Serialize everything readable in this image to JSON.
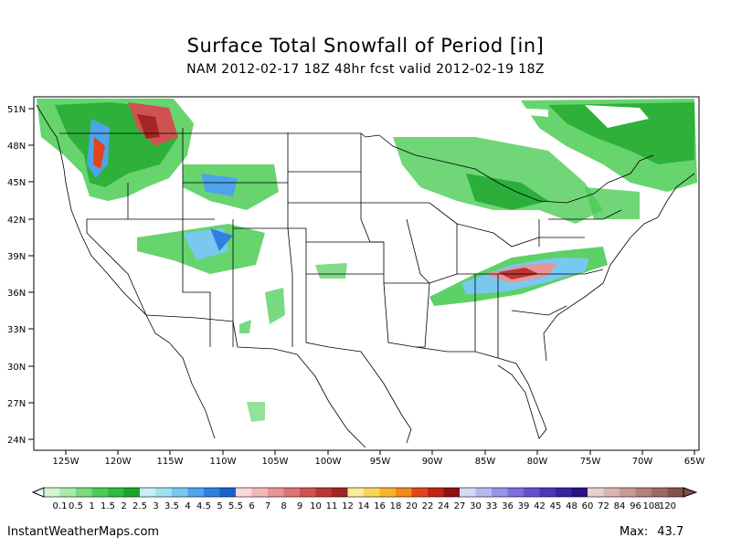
{
  "title": "Surface Total Snowfall of Period [in]",
  "subtitle": "NAM 2012-02-17 18Z 48hr fcst valid 2012-02-19 18Z",
  "lat_labels": [
    "51N",
    "48N",
    "45N",
    "42N",
    "39N",
    "36N",
    "33N",
    "30N",
    "27N",
    "24N"
  ],
  "lon_labels": [
    "125W",
    "120W",
    "115W",
    "110W",
    "105W",
    "100W",
    "95W",
    "90W",
    "85W",
    "80W",
    "75W",
    "70W",
    "65W"
  ],
  "legend": {
    "values": [
      "0.1",
      "0.5",
      "1",
      "1.5",
      "2",
      "2.5",
      "3",
      "3.5",
      "4",
      "4.5",
      "5",
      "5.5",
      "6",
      "7",
      "8",
      "9",
      "10",
      "11",
      "12",
      "14",
      "16",
      "18",
      "20",
      "22",
      "24",
      "27",
      "30",
      "33",
      "36",
      "39",
      "42",
      "45",
      "48",
      "60",
      "72",
      "84",
      "96",
      "108",
      "120"
    ],
    "colors": [
      "#d2f5d2",
      "#a8ebab",
      "#79db80",
      "#4ccc55",
      "#2fbc3c",
      "#1aa52a",
      "#c9eef7",
      "#a0e1f2",
      "#78c8f0",
      "#4ea3ec",
      "#2f7fe0",
      "#1c60cc",
      "#fbd7d7",
      "#f4b7b7",
      "#e99595",
      "#dd7474",
      "#cf5252",
      "#bd3535",
      "#a32626",
      "#fcec9a",
      "#f9d65a",
      "#f6b42a",
      "#f28b18",
      "#e2451a",
      "#c32414",
      "#8f1010",
      "#d8d8f8",
      "#b8b6f2",
      "#9892e8",
      "#7c70dc",
      "#6252cc",
      "#4c37b8",
      "#3a22a0",
      "#2a1286",
      "#e8d0cf",
      "#dab6b3",
      "#c99b97",
      "#b6807b",
      "#a06862",
      "#85524c"
    ]
  },
  "site": "InstantWeatherMaps.com",
  "max_label": "Max:",
  "max_value": "43.7"
}
